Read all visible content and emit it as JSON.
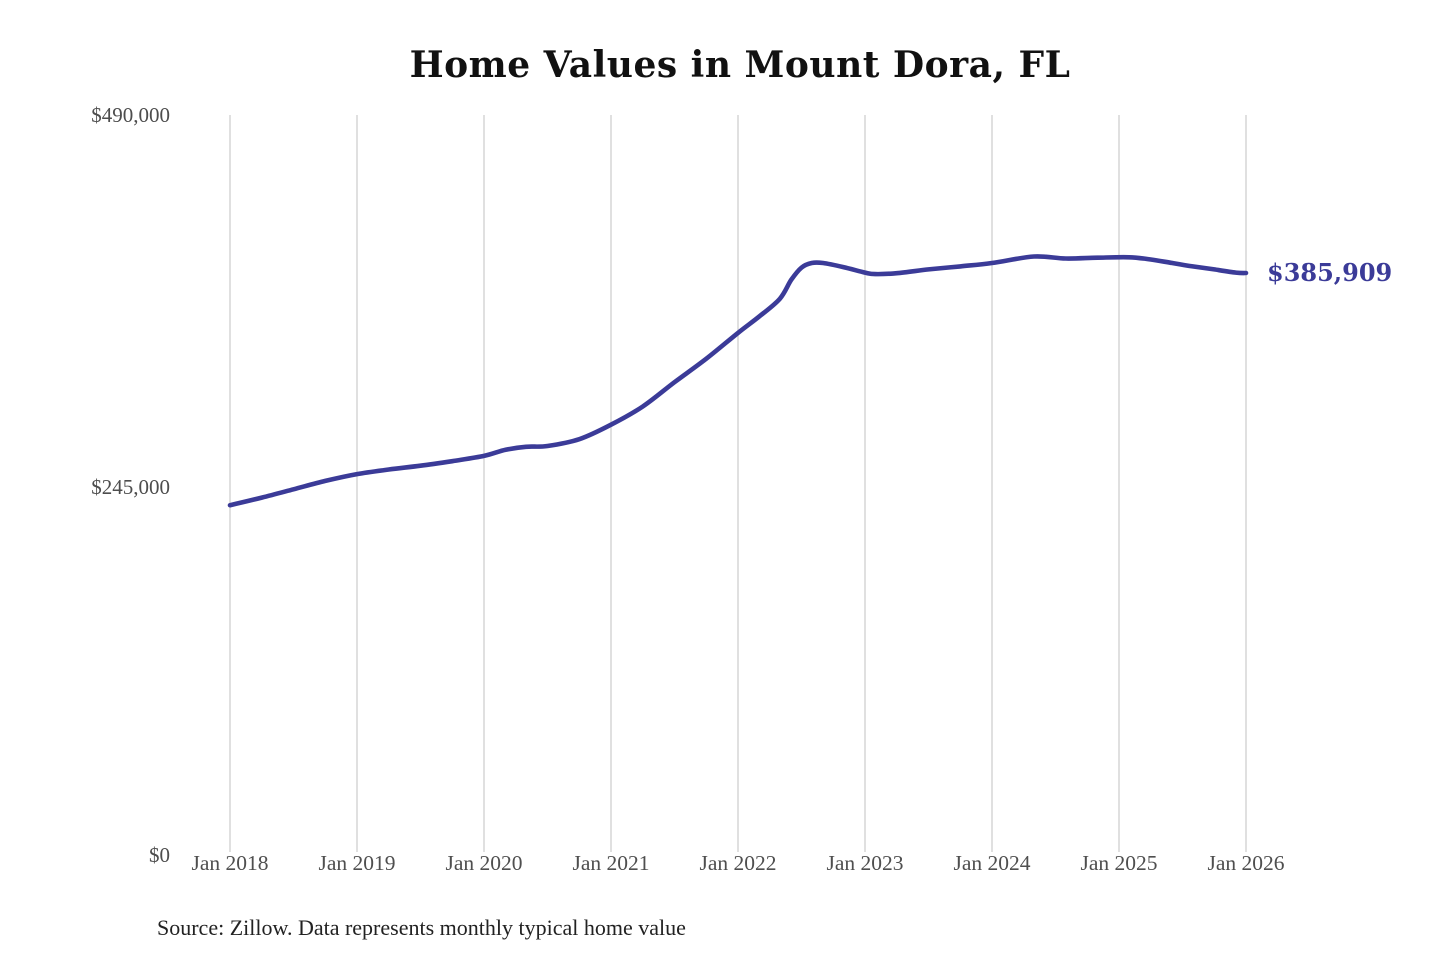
{
  "page": {
    "background": "#ffffff"
  },
  "chart_data": {
    "type": "line",
    "title": "Home Values in Mount Dora, FL",
    "source": "Source: Zillow. Data represents monthly typical home value",
    "xlabel": "",
    "ylabel": "",
    "legend": "none",
    "grid": "vertical-only",
    "line_color": "#3b3b98",
    "grid_color": "#cccccc",
    "tick_label_color": "#4f4f4f",
    "x_ticks": [
      "Jan 2018",
      "Jan 2019",
      "Jan 2020",
      "Jan 2021",
      "Jan 2022",
      "Jan 2023",
      "Jan 2024",
      "Jan 2025",
      "Jan 2026"
    ],
    "y_ticks": [
      {
        "label": "$0",
        "value": 0
      },
      {
        "label": "$245,000",
        "value": 245000
      },
      {
        "label": "$490,000",
        "value": 490000
      }
    ],
    "x_range": [
      2018.0,
      2026.0
    ],
    "y_range": [
      0,
      490000
    ],
    "end_label": {
      "label": "$385,909",
      "value": 385909
    },
    "series": [
      {
        "name": "Typical home value",
        "points": [
          [
            2018.0,
            233000
          ],
          [
            2018.25,
            238000
          ],
          [
            2018.5,
            243500
          ],
          [
            2018.75,
            249000
          ],
          [
            2019.0,
            253500
          ],
          [
            2019.25,
            256500
          ],
          [
            2019.5,
            259000
          ],
          [
            2019.75,
            262000
          ],
          [
            2020.0,
            265500
          ],
          [
            2020.17,
            269500
          ],
          [
            2020.33,
            271500
          ],
          [
            2020.5,
            272000
          ],
          [
            2020.75,
            276500
          ],
          [
            2021.0,
            286000
          ],
          [
            2021.25,
            298000
          ],
          [
            2021.5,
            314000
          ],
          [
            2021.75,
            329500
          ],
          [
            2022.0,
            346500
          ],
          [
            2022.17,
            357500
          ],
          [
            2022.33,
            369000
          ],
          [
            2022.42,
            381500
          ],
          [
            2022.5,
            389500
          ],
          [
            2022.58,
            392500
          ],
          [
            2022.67,
            392500
          ],
          [
            2022.83,
            389800
          ],
          [
            2023.0,
            386200
          ],
          [
            2023.08,
            385200
          ],
          [
            2023.25,
            385800
          ],
          [
            2023.5,
            388300
          ],
          [
            2023.75,
            390300
          ],
          [
            2024.0,
            392500
          ],
          [
            2024.33,
            396800
          ],
          [
            2024.58,
            395500
          ],
          [
            2024.83,
            396000
          ],
          [
            2025.08,
            396300
          ],
          [
            2025.25,
            394800
          ],
          [
            2025.42,
            392500
          ],
          [
            2025.58,
            390300
          ],
          [
            2025.75,
            388300
          ],
          [
            2025.92,
            386200
          ],
          [
            2026.0,
            385909
          ]
        ]
      }
    ]
  }
}
